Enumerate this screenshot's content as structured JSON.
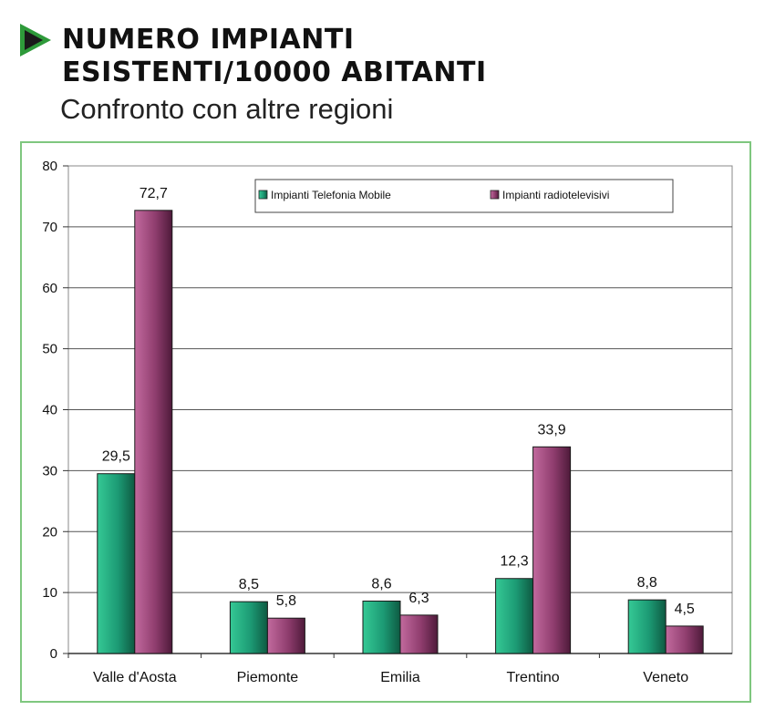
{
  "header": {
    "title_line1": "NUMERO IMPIANTI",
    "title_line2": "ESISTENTI/10000 ABITANTI",
    "subtitle": "Confronto con altre regioni",
    "accent_color": "#2e9a3a",
    "icon": "play-triangle-icon"
  },
  "chart_data": {
    "type": "bar",
    "categories": [
      "Valle d'Aosta",
      "Piemonte",
      "Emilia",
      "Trentino",
      "Veneto"
    ],
    "series": [
      {
        "name": "Impianti Telefonia Mobile",
        "values": [
          29.5,
          8.5,
          8.6,
          12.3,
          8.8
        ],
        "labels": [
          "29,5",
          "8,5",
          "8,6",
          "12,3",
          "8,8"
        ],
        "color": "#1f9e78"
      },
      {
        "name": "Impianti radiotelevisivi",
        "values": [
          72.7,
          5.8,
          6.3,
          33.9,
          4.5
        ],
        "labels": [
          "72,7",
          "5,8",
          "6,3",
          "33,9",
          "4,5"
        ],
        "color": "#9a4878"
      }
    ],
    "ylim": [
      0,
      80
    ],
    "yticks": [
      0,
      10,
      20,
      30,
      40,
      50,
      60,
      70,
      80
    ],
    "grid": true,
    "legend": "top-center",
    "frame_color": "#7fc77f"
  }
}
